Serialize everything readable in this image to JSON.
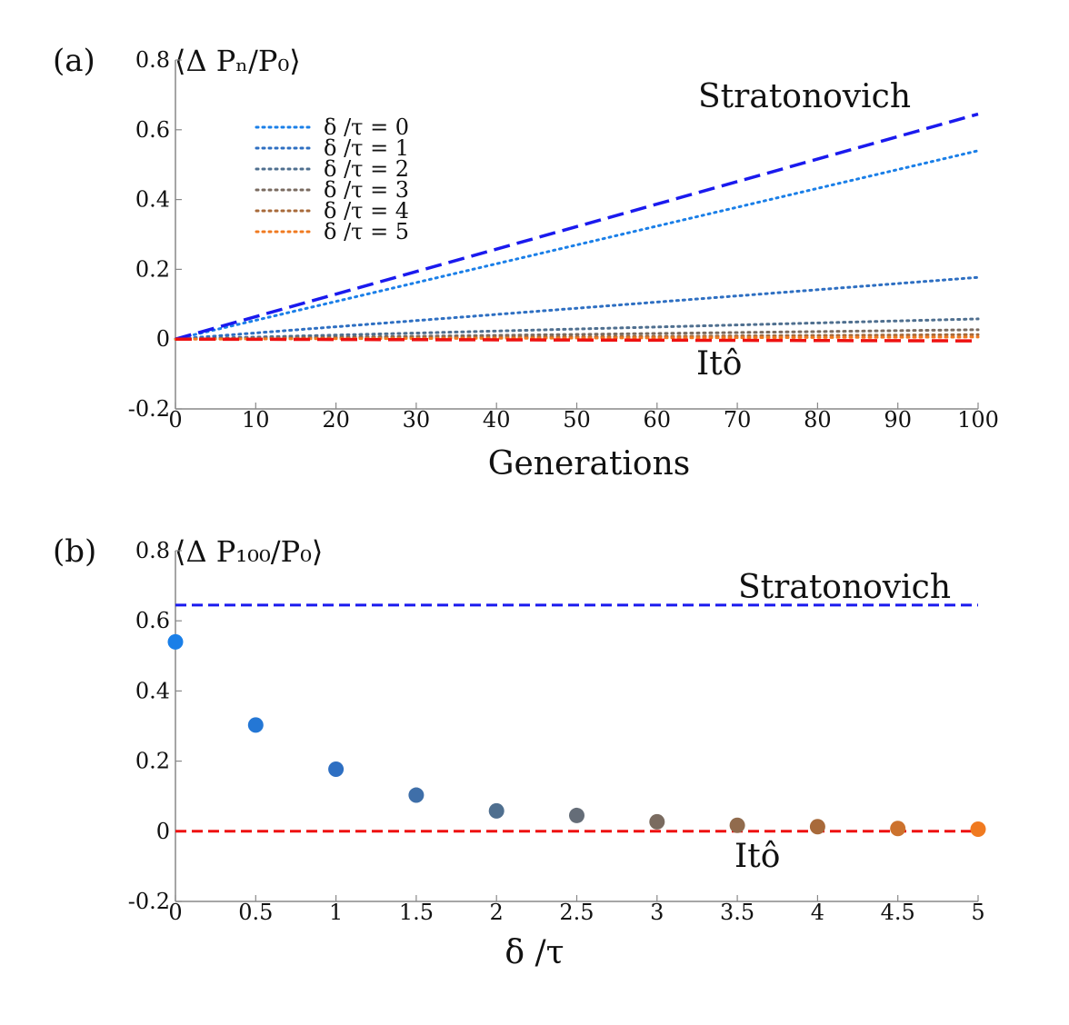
{
  "colors": {
    "stratonovich": "#1a1aee",
    "ito": "#ee1111",
    "axis": "#888888",
    "palette": [
      "#1a7fe8",
      "#2e6fc2",
      "#4f6f8f",
      "#7a6b60",
      "#a86a3a",
      "#f07a20"
    ]
  },
  "chart_data": [
    {
      "type": "line",
      "panel_label": "(a)",
      "ylabel": "⟨Δ Pₙ/P₀⟩",
      "xlabel": "Generations",
      "xlim": [
        0,
        100
      ],
      "ylim": [
        -0.2,
        0.8
      ],
      "x_ticks": [
        0,
        10,
        20,
        30,
        40,
        50,
        60,
        70,
        80,
        90,
        100
      ],
      "x_tick_labels": [
        "0",
        "10",
        "20",
        "30",
        "40",
        "50",
        "60",
        "70",
        "80",
        "90",
        "100"
      ],
      "y_ticks": [
        -0.2,
        0,
        0.2,
        0.4,
        0.6,
        0.8
      ],
      "y_tick_labels": [
        "-0.2",
        "0",
        "0.2",
        "0.4",
        "0.6",
        "0.8"
      ],
      "grid": false,
      "legend_position": "top-left",
      "x": [
        0,
        100
      ],
      "reference_lines": [
        {
          "name": "Stratonovich",
          "style": "dashed",
          "values": [
            0,
            0.645
          ]
        },
        {
          "name": "Itô",
          "style": "dashed",
          "values": [
            0,
            -0.005
          ]
        }
      ],
      "series": [
        {
          "name": "δ  /τ   = 0",
          "style": "dotted",
          "values": [
            0,
            0.54
          ]
        },
        {
          "name": "δ  /τ   = 1",
          "style": "dotted",
          "values": [
            0,
            0.177
          ]
        },
        {
          "name": "δ  /τ   = 2",
          "style": "dotted",
          "values": [
            0,
            0.058
          ]
        },
        {
          "name": "δ  /τ   = 3",
          "style": "dotted",
          "values": [
            0,
            0.027
          ]
        },
        {
          "name": "δ  /τ   = 4",
          "style": "dotted",
          "values": [
            0,
            0.013
          ]
        },
        {
          "name": "δ  /τ   = 5",
          "style": "dotted",
          "values": [
            0,
            0.006
          ]
        }
      ]
    },
    {
      "type": "scatter",
      "panel_label": "(b)",
      "ylabel": "⟨Δ P₁₀₀/P₀⟩",
      "xlabel": "δ  /τ",
      "xlim": [
        0,
        5
      ],
      "ylim": [
        -0.2,
        0.8
      ],
      "x_ticks": [
        0,
        0.5,
        1,
        1.5,
        2,
        2.5,
        3,
        3.5,
        4,
        4.5,
        5
      ],
      "x_tick_labels": [
        "0",
        "0.5",
        "1",
        "1.5",
        "2",
        "2.5",
        "3",
        "3.5",
        "4",
        "4.5",
        "5"
      ],
      "y_ticks": [
        -0.2,
        0,
        0.2,
        0.4,
        0.6,
        0.8
      ],
      "y_tick_labels": [
        "-0.2",
        "0",
        "0.2",
        "0.4",
        "0.6",
        "0.8"
      ],
      "grid": false,
      "x": [
        0,
        0.5,
        1,
        1.5,
        2,
        2.5,
        3,
        3.5,
        4,
        4.5,
        5
      ],
      "values": [
        0.54,
        0.303,
        0.177,
        0.103,
        0.058,
        0.045,
        0.027,
        0.017,
        0.013,
        0.008,
        0.006
      ],
      "reference_lines": [
        {
          "name": "Stratonovich",
          "style": "dashed",
          "value": 0.645
        },
        {
          "name": "Itô",
          "style": "dashed",
          "value": 0
        }
      ]
    }
  ]
}
